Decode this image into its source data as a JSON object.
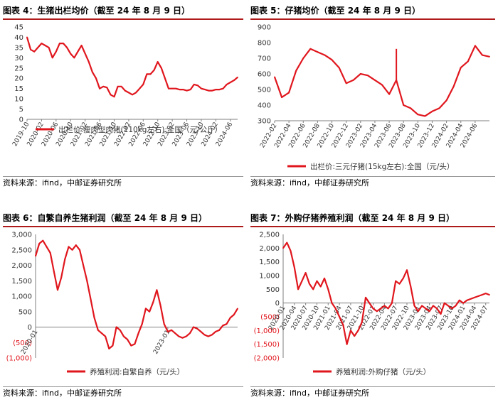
{
  "chart_data": [
    {
      "id": "c4",
      "type": "line",
      "title": "图表 4：生猪出栏均价（截至 24 年 8 月 9 日）",
      "source": "资料来源：ifind，中邮证券研究所",
      "legend": "出栏价:瘦肉型肉猪(110kg左右):全国（元/公斤）",
      "legend_position": "bottom-inside",
      "color": "#e0161d",
      "ylim": [
        0,
        45
      ],
      "yticks": [
        0,
        5,
        10,
        15,
        20,
        25,
        30,
        35,
        40,
        45
      ],
      "ytick_labels": [
        "0",
        "5",
        "10",
        "15",
        "20",
        "25",
        "30",
        "35",
        "40",
        "45"
      ],
      "xlim": [
        "2019-10",
        "2024-08"
      ],
      "xticks": [
        "2019-10",
        "2020-02",
        "2020-06",
        "2020-10",
        "2021-02",
        "2021-06",
        "2021-10",
        "2022-02",
        "2022-06",
        "2022-10",
        "2023-02",
        "2023-06",
        "2023-10",
        "2024-02",
        "2024-06"
      ],
      "points": [
        [
          "2019-10",
          40
        ],
        [
          "2019-11",
          34
        ],
        [
          "2019-12",
          33
        ],
        [
          "2020-01",
          35
        ],
        [
          "2020-02",
          37
        ],
        [
          "2020-03",
          36
        ],
        [
          "2020-04",
          35
        ],
        [
          "2020-05",
          30
        ],
        [
          "2020-06",
          33
        ],
        [
          "2020-07",
          37
        ],
        [
          "2020-08",
          37
        ],
        [
          "2020-09",
          35
        ],
        [
          "2020-10",
          32
        ],
        [
          "2020-11",
          30
        ],
        [
          "2020-12",
          33
        ],
        [
          "2021-01",
          36
        ],
        [
          "2021-02",
          32
        ],
        [
          "2021-03",
          28
        ],
        [
          "2021-04",
          23
        ],
        [
          "2021-05",
          20
        ],
        [
          "2021-06",
          15
        ],
        [
          "2021-07",
          16
        ],
        [
          "2021-08",
          15.5
        ],
        [
          "2021-09",
          12
        ],
        [
          "2021-10",
          11
        ],
        [
          "2021-11",
          16
        ],
        [
          "2021-12",
          16
        ],
        [
          "2022-01",
          14
        ],
        [
          "2022-02",
          13
        ],
        [
          "2022-03",
          12
        ],
        [
          "2022-04",
          13
        ],
        [
          "2022-05",
          15
        ],
        [
          "2022-06",
          17
        ],
        [
          "2022-07",
          22
        ],
        [
          "2022-08",
          22
        ],
        [
          "2022-09",
          24
        ],
        [
          "2022-10",
          28
        ],
        [
          "2022-11",
          25
        ],
        [
          "2022-12",
          20
        ],
        [
          "2023-01",
          15
        ],
        [
          "2023-02",
          15
        ],
        [
          "2023-03",
          15
        ],
        [
          "2023-04",
          14.5
        ],
        [
          "2023-05",
          14.5
        ],
        [
          "2023-06",
          14
        ],
        [
          "2023-07",
          14.5
        ],
        [
          "2023-08",
          17
        ],
        [
          "2023-09",
          16.5
        ],
        [
          "2023-10",
          15
        ],
        [
          "2023-11",
          14.5
        ],
        [
          "2023-12",
          14
        ],
        [
          "2024-01",
          14
        ],
        [
          "2024-02",
          14.5
        ],
        [
          "2024-03",
          14.5
        ],
        [
          "2024-04",
          15
        ],
        [
          "2024-05",
          17
        ],
        [
          "2024-06",
          18
        ],
        [
          "2024-07",
          19
        ],
        [
          "2024-08",
          20.5
        ]
      ]
    },
    {
      "id": "c5",
      "type": "line",
      "title": "图表 5：仔猪均价（截至 24 年 8 月 9 日）",
      "source": "资料来源：ifind，中邮证券研究所",
      "legend": "出栏价:三元仔猪(15kg左右):全国（元/头）",
      "legend_position": "bottom",
      "color": "#e0161d",
      "ylim": [
        300,
        900
      ],
      "yticks": [
        300,
        400,
        500,
        600,
        700,
        800,
        900
      ],
      "ytick_labels": [
        "300",
        "400",
        "500",
        "600",
        "700",
        "800",
        "900"
      ],
      "xlim": [
        "2022-02",
        "2024-08"
      ],
      "xticks": [
        "2022-02",
        "2022-04",
        "2022-06",
        "2022-08",
        "2022-10",
        "2022-12",
        "2023-02",
        "2023-04",
        "2023-06",
        "2023-08",
        "2023-10",
        "2023-12",
        "2024-02",
        "2024-04",
        "2024-06"
      ],
      "points": [
        [
          "2022-02",
          580
        ],
        [
          "2022-03",
          450
        ],
        [
          "2022-04",
          480
        ],
        [
          "2022-05",
          620
        ],
        [
          "2022-06",
          700
        ],
        [
          "2022-07",
          760
        ],
        [
          "2022-08",
          740
        ],
        [
          "2022-09",
          720
        ],
        [
          "2022-10",
          690
        ],
        [
          "2022-11",
          640
        ],
        [
          "2022-12",
          540
        ],
        [
          "2023-01",
          560
        ],
        [
          "2023-02",
          600
        ],
        [
          "2023-03",
          590
        ],
        [
          "2023-04",
          560
        ],
        [
          "2023-05",
          530
        ],
        [
          "2023-06",
          470
        ],
        [
          "2023-07",
          560
        ],
        [
          "2023-08",
          400
        ],
        [
          "2023-09",
          380
        ],
        [
          "2023-10",
          340
        ],
        [
          "2023-11",
          330
        ],
        [
          "2023-12",
          360
        ],
        [
          "2024-01",
          380
        ],
        [
          "2024-02",
          430
        ],
        [
          "2024-03",
          520
        ],
        [
          "2024-04",
          640
        ],
        [
          "2024-05",
          680
        ],
        [
          "2024-06",
          780
        ],
        [
          "2024-07",
          720
        ],
        [
          "2024-08",
          710
        ]
      ],
      "spike": [
        "2023-07",
        760
      ]
    },
    {
      "id": "c6",
      "type": "line",
      "title": "图表 6：自繁自养生猪利润（截至 24 年 8 月 9 日）",
      "source": "资料来源：ifind，中邮证券研究所",
      "legend": "养殖利润:自繁自养（元/头）",
      "legend_position": "bottom",
      "color": "#e0161d",
      "ylim": [
        -1000,
        3000
      ],
      "yticks": [
        -1000,
        -500,
        0,
        500,
        1000,
        1500,
        2000,
        2500,
        3000
      ],
      "ytick_labels": [
        "(1,000)",
        "(500)",
        "0",
        "500",
        "1,000",
        "1,500",
        "2,000",
        "2,500",
        "3,000"
      ],
      "xlim": [
        "2020-01",
        "2024-08"
      ],
      "xticks": [
        "2020-01",
        "2023-01"
      ],
      "points": [
        [
          "2020-01",
          2300
        ],
        [
          "2020-02",
          2700
        ],
        [
          "2020-03",
          2800
        ],
        [
          "2020-04",
          2600
        ],
        [
          "2020-05",
          2400
        ],
        [
          "2020-06",
          1800
        ],
        [
          "2020-07",
          1200
        ],
        [
          "2020-08",
          1600
        ],
        [
          "2020-09",
          2200
        ],
        [
          "2020-10",
          2600
        ],
        [
          "2020-11",
          2500
        ],
        [
          "2020-12",
          2650
        ],
        [
          "2021-01",
          2500
        ],
        [
          "2021-02",
          2000
        ],
        [
          "2021-03",
          1500
        ],
        [
          "2021-04",
          900
        ],
        [
          "2021-05",
          300
        ],
        [
          "2021-06",
          -100
        ],
        [
          "2021-07",
          -200
        ],
        [
          "2021-08",
          -300
        ],
        [
          "2021-09",
          -700
        ],
        [
          "2021-10",
          -600
        ],
        [
          "2021-11",
          0
        ],
        [
          "2021-12",
          -100
        ],
        [
          "2022-01",
          -300
        ],
        [
          "2022-02",
          -400
        ],
        [
          "2022-03",
          -600
        ],
        [
          "2022-04",
          -550
        ],
        [
          "2022-05",
          -200
        ],
        [
          "2022-06",
          100
        ],
        [
          "2022-07",
          600
        ],
        [
          "2022-08",
          500
        ],
        [
          "2022-09",
          800
        ],
        [
          "2022-10",
          1200
        ],
        [
          "2022-11",
          700
        ],
        [
          "2022-12",
          100
        ],
        [
          "2023-01",
          -150
        ],
        [
          "2023-02",
          -100
        ],
        [
          "2023-03",
          -200
        ],
        [
          "2023-04",
          -300
        ],
        [
          "2023-05",
          -350
        ],
        [
          "2023-06",
          -300
        ],
        [
          "2023-07",
          -200
        ],
        [
          "2023-08",
          0
        ],
        [
          "2023-09",
          -50
        ],
        [
          "2023-10",
          -150
        ],
        [
          "2023-11",
          -250
        ],
        [
          "2023-12",
          -300
        ],
        [
          "2024-01",
          -250
        ],
        [
          "2024-02",
          -150
        ],
        [
          "2024-03",
          -100
        ],
        [
          "2024-04",
          50
        ],
        [
          "2024-05",
          100
        ],
        [
          "2024-06",
          300
        ],
        [
          "2024-07",
          400
        ],
        [
          "2024-08",
          600
        ]
      ]
    },
    {
      "id": "c7",
      "type": "line",
      "title": "图表 7：外购仔猪养殖利润（截至 24 年 8 月 9 日）",
      "source": "资料来源：ifind，中邮证券研究所",
      "legend": "养殖利润:外购仔猪（元/头）",
      "legend_position": "bottom",
      "color": "#e0161d",
      "ylim": [
        -2000,
        2500
      ],
      "yticks": [
        -2000,
        -1500,
        -1000,
        -500,
        0,
        500,
        1000,
        1500,
        2000,
        2500
      ],
      "ytick_labels": [
        "(2,000)",
        "(1,500)",
        "(1,000)",
        "(500)",
        "0",
        "500",
        "1,000",
        "1,500",
        "2,000",
        "2,500"
      ],
      "xlim": [
        "2020-01",
        "2024-08"
      ],
      "xticks": [
        "2020-01",
        "2020-04",
        "2020-07",
        "2020-10",
        "2021-01",
        "2021-04",
        "2021-07",
        "2021-10",
        "2022-01",
        "2022-04",
        "2022-07",
        "2022-10",
        "2023-01",
        "2023-04",
        "2023-07",
        "2023-10",
        "2024-01",
        "2024-04",
        "2024-07"
      ],
      "points": [
        [
          "2020-01",
          2000
        ],
        [
          "2020-02",
          2200
        ],
        [
          "2020-03",
          1900
        ],
        [
          "2020-04",
          1300
        ],
        [
          "2020-05",
          500
        ],
        [
          "2020-06",
          800
        ],
        [
          "2020-07",
          1100
        ],
        [
          "2020-08",
          700
        ],
        [
          "2020-09",
          500
        ],
        [
          "2020-10",
          800
        ],
        [
          "2020-11",
          600
        ],
        [
          "2020-12",
          900
        ],
        [
          "2021-01",
          500
        ],
        [
          "2021-02",
          0
        ],
        [
          "2021-03",
          -200
        ],
        [
          "2021-04",
          -500
        ],
        [
          "2021-05",
          -800
        ],
        [
          "2021-06",
          -1500
        ],
        [
          "2021-07",
          -1000
        ],
        [
          "2021-08",
          -1200
        ],
        [
          "2021-09",
          -1000
        ],
        [
          "2021-10",
          -700
        ],
        [
          "2021-11",
          200
        ],
        [
          "2021-12",
          0
        ],
        [
          "2022-01",
          -200
        ],
        [
          "2022-02",
          -300
        ],
        [
          "2022-03",
          -200
        ],
        [
          "2022-04",
          -100
        ],
        [
          "2022-05",
          -200
        ],
        [
          "2022-06",
          0
        ],
        [
          "2022-07",
          800
        ],
        [
          "2022-08",
          700
        ],
        [
          "2022-09",
          900
        ],
        [
          "2022-10",
          1200
        ],
        [
          "2022-11",
          600
        ],
        [
          "2022-12",
          -100
        ],
        [
          "2023-01",
          -300
        ],
        [
          "2023-02",
          -100
        ],
        [
          "2023-03",
          -200
        ],
        [
          "2023-04",
          -300
        ],
        [
          "2023-05",
          -100
        ],
        [
          "2023-06",
          -200
        ],
        [
          "2023-07",
          -400
        ],
        [
          "2023-08",
          0
        ],
        [
          "2023-09",
          -100
        ],
        [
          "2023-10",
          -200
        ],
        [
          "2023-11",
          -100
        ],
        [
          "2023-12",
          100
        ],
        [
          "2024-01",
          0
        ],
        [
          "2024-02",
          100
        ],
        [
          "2024-03",
          150
        ],
        [
          "2024-04",
          200
        ],
        [
          "2024-05",
          250
        ],
        [
          "2024-06",
          300
        ],
        [
          "2024-07",
          350
        ],
        [
          "2024-08",
          300
        ]
      ]
    }
  ]
}
